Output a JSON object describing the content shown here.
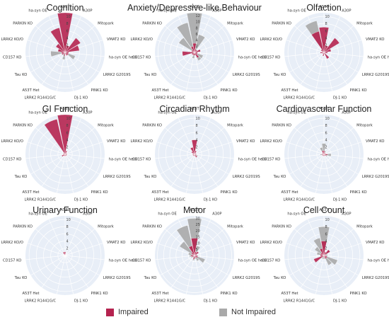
{
  "legend": {
    "impaired_label": "Impaired",
    "not_impaired_label": "Not Impaired"
  },
  "colors": {
    "impaired": "#b5234f",
    "not_impaired": "#a9a9a9",
    "polar_bg": "#e8eef7",
    "grid": "#ffffff"
  },
  "chart_data": [
    {
      "type": "polar-bar",
      "title": "Cognition",
      "categories": [
        "A53T",
        "A30P",
        "Mitopark",
        "VMAT2 KO",
        "ha-syn OE hemi",
        "LRRK2 G2019S",
        "PINK1 KO",
        "DJ-1 KO",
        "LRRK2 R1441G/C",
        "A53T Het",
        "Tau KO",
        "CD157 KO",
        "LRRK2 KO/O",
        "PARKIN KO",
        "ha-syn OE"
      ],
      "tick_values": [
        2,
        4,
        6,
        8,
        10
      ],
      "rmax": 11,
      "series": [
        {
          "name": "Impaired",
          "values": [
            11,
            2,
            5,
            4,
            1,
            1,
            1,
            0.5,
            1,
            0.5,
            1,
            1,
            2,
            3,
            7
          ]
        },
        {
          "name": "Not Impaired",
          "values": [
            3,
            2,
            2,
            1,
            1,
            3,
            1,
            0.5,
            2,
            1,
            1,
            4,
            2,
            2,
            3
          ]
        }
      ]
    },
    {
      "type": "polar-bar",
      "title": "Anxiety/Depressive-like Behaviour",
      "categories": [
        "A53T",
        "A30P",
        "Mitopark",
        "VMAT2 KO",
        "ha-syn OE hemi",
        "LRRK2 G2019S",
        "PINK1 KO",
        "DJ-1 KO",
        "LRRK2 R1441G/C",
        "A53T Het",
        "Tau KO",
        "CD157 KO",
        "LRRK2 KO/O",
        "PARKIN KO",
        "ha-syn OE"
      ],
      "tick_values": [
        2,
        4,
        6,
        8,
        10,
        12
      ],
      "rmax": 13,
      "series": [
        {
          "name": "Impaired",
          "values": [
            3,
            1,
            1,
            2,
            1,
            1,
            2,
            1,
            1,
            1,
            1,
            4,
            1,
            1,
            2
          ]
        },
        {
          "name": "Not Impaired",
          "values": [
            13,
            6,
            1,
            2,
            1,
            3,
            3,
            1,
            2,
            1,
            1,
            2,
            1,
            6,
            10
          ]
        }
      ]
    },
    {
      "type": "polar-bar",
      "title": "Olfaction",
      "categories": [
        "A53T",
        "A30P",
        "Mitopark",
        "VMAT2 KO",
        "ha-syn OE hemi",
        "LRRK2 G2019S",
        "PINK1 KO",
        "DJ-1 KO",
        "LRRK2 R1441G/C",
        "A53T Het",
        "Tau KO",
        "CD157 KO",
        "LRRK2 KO/O",
        "PARKIN KO",
        "ha-syn OE"
      ],
      "tick_values": [
        2,
        4,
        6,
        8,
        10
      ],
      "rmax": 11,
      "series": [
        {
          "name": "Impaired",
          "values": [
            7,
            2,
            5,
            2,
            1,
            0.5,
            2,
            0.5,
            1,
            0.5,
            0.5,
            1,
            0.5,
            1,
            6
          ]
        },
        {
          "name": "Not Impaired",
          "values": [
            3,
            1,
            2,
            1,
            1,
            0.5,
            1,
            0.5,
            1,
            0.5,
            0.5,
            1,
            0.5,
            1,
            9
          ]
        }
      ]
    },
    {
      "type": "polar-bar",
      "title": "GI Function",
      "categories": [
        "A53T",
        "A30P",
        "Mitopark",
        "VMAT2 KO",
        "ha-syn OE hemi",
        "LRRK2 G2019S",
        "PINK1 KO",
        "DJ-1 KO",
        "LRRK2 R1441G/C",
        "A53T Het",
        "Tau KO",
        "CD157 KO",
        "LRRK2 KO/O",
        "PARKIN KO",
        "ha-syn OE"
      ],
      "tick_values": [
        2,
        4,
        6,
        8,
        10
      ],
      "rmax": 11,
      "series": [
        {
          "name": "Impaired",
          "values": [
            11,
            1,
            0.5,
            0.5,
            0.5,
            0.5,
            0.5,
            0.5,
            0.5,
            0.5,
            1,
            0.5,
            0.5,
            0.5,
            10
          ]
        },
        {
          "name": "Not Impaired",
          "values": [
            1,
            0.5,
            0.5,
            0.5,
            0.5,
            0.5,
            0.5,
            0.5,
            0.5,
            0.5,
            0.5,
            0.5,
            0.5,
            0.5,
            1
          ]
        }
      ]
    },
    {
      "type": "polar-bar",
      "title": "Circadian Rhythm",
      "categories": [
        "A53T",
        "A30P",
        "Mitopark",
        "VMAT2 KO",
        "ha-syn OE hemi",
        "LRRK2 G2019S",
        "PINK1 KO",
        "DJ-1 KO",
        "LRRK2 R1441G/C",
        "A53T Het",
        "Tau KO",
        "CD157 KO",
        "LRRK2 KO/O",
        "PARKIN KO",
        "ha-syn OE"
      ],
      "tick_values": [
        2,
        4,
        6,
        8,
        10
      ],
      "rmax": 11,
      "series": [
        {
          "name": "Impaired",
          "values": [
            4,
            1,
            0.5,
            0.5,
            0.5,
            0.5,
            1,
            0.5,
            0.5,
            0.5,
            0.5,
            0.5,
            0.5,
            1,
            2
          ]
        },
        {
          "name": "Not Impaired",
          "values": [
            2,
            0.5,
            0.5,
            0.5,
            0.5,
            1,
            0.5,
            0.5,
            0.5,
            0.5,
            0.5,
            0.5,
            0.5,
            0.5,
            1
          ]
        }
      ]
    },
    {
      "type": "polar-bar",
      "title": "Cardiovascular Function",
      "categories": [
        "A53T",
        "A30P",
        "Mitopark",
        "VMAT2 KO",
        "ha-syn OE hemi",
        "LRRK2 G2019S",
        "PINK1 KO",
        "DJ-1 KO",
        "LRRK2 R1441G/C",
        "A53T Het",
        "Tau KO",
        "CD157 KO",
        "LRRK2 KO/O",
        "PARKIN KO",
        "ha-syn OE"
      ],
      "tick_values": [
        2,
        4,
        6,
        8,
        10
      ],
      "rmax": 11,
      "series": [
        {
          "name": "Impaired",
          "values": [
            1,
            0.5,
            0.5,
            0.5,
            1,
            0.5,
            0.5,
            0.5,
            0.5,
            0.5,
            0.5,
            0.5,
            0.5,
            0.5,
            1
          ]
        },
        {
          "name": "Not Impaired",
          "values": [
            3,
            1,
            0.5,
            0.5,
            2,
            1,
            0.5,
            0.5,
            0.5,
            0.5,
            0.5,
            1,
            0.5,
            0.5,
            2
          ]
        }
      ]
    },
    {
      "type": "polar-bar",
      "title": "Urinary Function",
      "categories": [
        "A53T",
        "A30P",
        "Mitopark",
        "VMAT2 KO",
        "ha-syn OE hemi",
        "LRRK2 G2019S",
        "PINK1 KO",
        "DJ-1 KO",
        "LRRK2 R1441G/C",
        "A53T Het",
        "Tau KO",
        "CD157 KO",
        "LRRK2 KO/O",
        "PARKIN KO",
        "ha-syn OE"
      ],
      "tick_values": [
        2,
        4,
        6,
        8,
        10
      ],
      "rmax": 11,
      "series": [
        {
          "name": "Impaired",
          "values": [
            1,
            0,
            0,
            0,
            0,
            0,
            0,
            0,
            0,
            0,
            0,
            0,
            0,
            0,
            1
          ]
        },
        {
          "name": "Not Impaired",
          "values": [
            0,
            0,
            0,
            0,
            0,
            0,
            0,
            0,
            0,
            0,
            0,
            0,
            0,
            0,
            0
          ]
        }
      ]
    },
    {
      "type": "polar-bar",
      "title": "Motor",
      "categories": [
        "A53T",
        "A30P",
        "Mitopark",
        "VMAT2 KO",
        "ha-syn OE hemi",
        "LRRK2 G2019S",
        "PINK1 KO",
        "DJ-1 KO",
        "LRRK2 R1441G/C",
        "A53T Het",
        "Tau KO",
        "CD157 KO",
        "LRRK2 KO/O",
        "PARKIN KO",
        "ha-syn OE"
      ],
      "tick_values": [
        5,
        10,
        15,
        20,
        25,
        30
      ],
      "rmax": 32,
      "series": [
        {
          "name": "Impaired",
          "values": [
            14,
            3,
            4,
            2,
            2,
            3,
            2,
            2,
            3,
            1,
            2,
            3,
            2,
            3,
            8
          ]
        },
        {
          "name": "Not Impaired",
          "values": [
            30,
            8,
            3,
            2,
            3,
            9,
            5,
            3,
            4,
            2,
            3,
            4,
            5,
            14,
            25
          ]
        }
      ]
    },
    {
      "type": "polar-bar",
      "title": "Cell Count",
      "categories": [
        "A53T",
        "A30P",
        "Mitopark",
        "VMAT2 KO",
        "ha-syn OE hemi",
        "LRRK2 G2019S",
        "PINK1 KO",
        "DJ-1 KO",
        "LRRK2 R1441G/C",
        "A53T Het",
        "Tau KO",
        "CD157 KO",
        "LRRK2 KO/O",
        "PARKIN KO",
        "ha-syn OE"
      ],
      "tick_values": [
        2,
        4,
        6,
        8,
        10
      ],
      "rmax": 11,
      "series": [
        {
          "name": "Impaired",
          "values": [
            4,
            1,
            2,
            0.5,
            0.5,
            1,
            1,
            0.5,
            0.5,
            0.5,
            3,
            1,
            1,
            1,
            2
          ]
        },
        {
          "name": "Not Impaired",
          "values": [
            8,
            1,
            2,
            1,
            1,
            4,
            3,
            1,
            1,
            1,
            1,
            1,
            2,
            3,
            5
          ]
        }
      ]
    }
  ]
}
